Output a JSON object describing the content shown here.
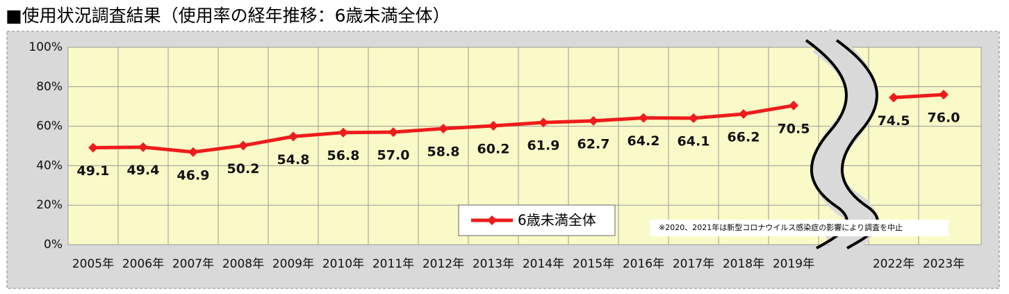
{
  "chart_data": {
    "type": "line",
    "title": "■使用状況調査結果（使用率の経年推移：6歳未満全体）",
    "categories": [
      "2005年",
      "2006年",
      "2007年",
      "2008年",
      "2009年",
      "2010年",
      "2011年",
      "2012年",
      "2013年",
      "2014年",
      "2015年",
      "2016年",
      "2017年",
      "2018年",
      "2019年",
      null,
      "2022年",
      "2023年"
    ],
    "series": [
      {
        "name": "6歳未満全体",
        "color": "#ee1c1c",
        "values": [
          49.1,
          49.4,
          46.9,
          50.2,
          54.8,
          56.8,
          57.0,
          58.8,
          60.2,
          61.9,
          62.7,
          64.2,
          64.1,
          66.2,
          70.5,
          null,
          74.5,
          76.0
        ],
        "value_labels": [
          "49.1",
          "49.4",
          "46.9",
          "50.2",
          "54.8",
          "56.8",
          "57.0",
          "58.8",
          "60.2",
          "61.9",
          "62.7",
          "64.2",
          "64.1",
          "66.2",
          "70.5",
          null,
          "74.5",
          "76.0"
        ]
      }
    ],
    "ylim": [
      0,
      100
    ],
    "yticks": [
      {
        "value": 0,
        "label": "0%"
      },
      {
        "value": 20,
        "label": "20%"
      },
      {
        "value": 40,
        "label": "40%"
      },
      {
        "value": 60,
        "label": "60%"
      },
      {
        "value": 80,
        "label": "80%"
      },
      {
        "value": 100,
        "label": "100%"
      }
    ],
    "grid": true,
    "annotation": "※2020、2021年は新型コロナウイルス感染症の影響により調査を中止"
  }
}
